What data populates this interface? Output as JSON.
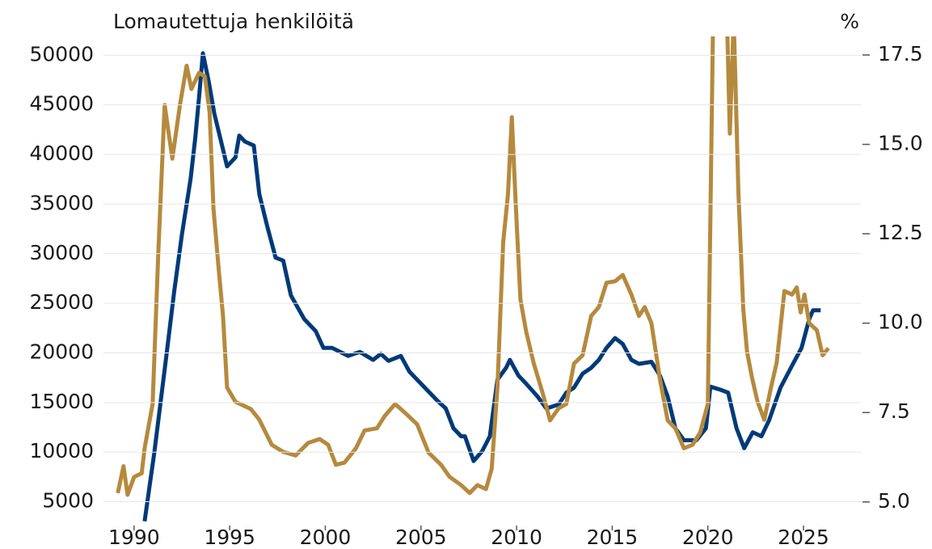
{
  "chart_data": {
    "type": "line",
    "title": "Lomautettuja henkilöitä",
    "y2_label": "%",
    "xlim": [
      1988.4,
      2028.0
    ],
    "xticks": [
      1990,
      1995,
      2000,
      2005,
      2010,
      2015,
      2020,
      2025
    ],
    "ylim": [
      2600,
      51900
    ],
    "yticks": [
      5000,
      10000,
      15000,
      20000,
      25000,
      30000,
      35000,
      40000,
      45000,
      50000
    ],
    "y2lim": [
      4.34,
      18.02
    ],
    "y2ticks": [
      {
        "value": 5.0,
        "label": "5.0"
      },
      7.5,
      {
        "value": 10.0,
        "label": "10.0"
      },
      12.5,
      {
        "value": 15.0,
        "label": "15.0"
      },
      17.5
    ],
    "grid": true,
    "series": [
      {
        "color": "#003a78",
        "axis": "y",
        "x": [
          1990.55,
          1991.06,
          1991.69,
          1992.1,
          1992.5,
          1992.96,
          1993.2,
          1993.4,
          1993.6,
          1993.9,
          1994.2,
          1994.65,
          1994.86,
          1995.3,
          1995.5,
          1995.8,
          1996.26,
          1996.55,
          1996.97,
          1997.4,
          1997.8,
          1998.2,
          1998.9,
          1999.5,
          1999.9,
          2000.35,
          2001.2,
          2001.8,
          2002.5,
          2002.9,
          2003.3,
          2003.95,
          2004.4,
          2004.8,
          2005.2,
          2005.85,
          2006.3,
          2006.7,
          2007.1,
          2007.3,
          2007.75,
          2008.2,
          2008.6,
          2009.0,
          2009.45,
          2009.65,
          2010.1,
          2010.5,
          2011.1,
          2011.55,
          2012.2,
          2012.6,
          2013.0,
          2013.45,
          2013.9,
          2014.3,
          2014.7,
          2015.15,
          2015.55,
          2016.0,
          2016.4,
          2017.05,
          2017.5,
          2017.9,
          2018.3,
          2018.75,
          2019.4,
          2019.9,
          2020.13,
          2020.64,
          2021.06,
          2021.5,
          2021.9,
          2022.35,
          2022.8,
          2023.2,
          2023.8,
          2024.45,
          2024.9,
          2025.3,
          2025.5,
          2025.9
        ],
        "values": [
          3030,
          9950,
          19700,
          26200,
          31900,
          37600,
          41700,
          45800,
          50200,
          47400,
          44100,
          40500,
          38800,
          39700,
          41900,
          41300,
          40900,
          36000,
          32700,
          29600,
          29300,
          25800,
          23400,
          22200,
          20500,
          20500,
          19700,
          20100,
          19300,
          19900,
          19200,
          19700,
          18100,
          17300,
          16500,
          15200,
          14400,
          12400,
          11600,
          11600,
          9100,
          10100,
          11600,
          17300,
          18500,
          19300,
          17700,
          16900,
          15600,
          14400,
          14800,
          16000,
          16500,
          17900,
          18500,
          19300,
          20500,
          21500,
          20900,
          19300,
          18900,
          19100,
          17700,
          15600,
          12400,
          11200,
          11200,
          12400,
          16600,
          16300,
          16000,
          12400,
          10400,
          12000,
          11600,
          13200,
          16500,
          18900,
          20500,
          23400,
          24300,
          24300
        ]
      },
      {
        "color": "#b58a3e",
        "axis": "y2",
        "x": [
          1989.15,
          1989.45,
          1989.66,
          1990.0,
          1990.4,
          1990.55,
          1990.97,
          1991.27,
          1991.6,
          1992.0,
          1992.4,
          1992.75,
          1993.0,
          1993.4,
          1993.7,
          1993.95,
          1994.15,
          1994.45,
          1994.65,
          1994.86,
          1995.3,
          1996.1,
          1996.55,
          1997.2,
          1997.8,
          1998.45,
          1999.1,
          1999.7,
          2000.15,
          2000.55,
          2001.0,
          2001.6,
          2002.05,
          2002.7,
          2003.1,
          2003.65,
          2004.15,
          2004.8,
          2005.4,
          2006.05,
          2006.5,
          2007.1,
          2007.55,
          2007.95,
          2008.4,
          2008.7,
          2009.0,
          2009.3,
          2009.55,
          2009.75,
          2009.95,
          2010.2,
          2010.5,
          2010.9,
          2011.35,
          2011.75,
          2012.2,
          2012.6,
          2013.0,
          2013.45,
          2013.9,
          2014.3,
          2014.7,
          2015.15,
          2015.55,
          2016.0,
          2016.4,
          2016.7,
          2017.05,
          2017.5,
          2017.9,
          2018.3,
          2018.75,
          2019.2,
          2019.6,
          2020.0,
          2020.3,
          2021.0,
          2021.15,
          2021.35,
          2021.6,
          2021.85,
          2022.05,
          2022.3,
          2022.6,
          2022.95,
          2023.3,
          2023.6,
          2024.0,
          2024.4,
          2024.65,
          2024.85,
          2025.05,
          2025.3,
          2025.7,
          2026.0,
          2026.3
        ],
        "values": [
          5.25,
          6.0,
          5.2,
          5.7,
          5.8,
          6.5,
          7.74,
          12.0,
          16.1,
          14.6,
          16.1,
          17.2,
          16.55,
          17.0,
          16.9,
          15.9,
          13.2,
          11.35,
          10.2,
          8.2,
          7.8,
          7.6,
          7.3,
          6.6,
          6.4,
          6.3,
          6.65,
          6.76,
          6.6,
          6.04,
          6.1,
          6.5,
          7.0,
          7.06,
          7.4,
          7.74,
          7.5,
          7.17,
          6.38,
          6.04,
          5.7,
          5.47,
          5.25,
          5.47,
          5.36,
          5.93,
          8.2,
          12.26,
          13.6,
          15.76,
          13.4,
          10.67,
          9.77,
          8.87,
          8.07,
          7.28,
          7.62,
          7.74,
          8.87,
          9.1,
          10.2,
          10.45,
          11.13,
          11.17,
          11.35,
          10.8,
          10.2,
          10.45,
          10.0,
          8.41,
          7.28,
          7.06,
          6.5,
          6.6,
          6.94,
          7.74,
          19.5,
          18.5,
          15.3,
          18.5,
          13.6,
          10.4,
          9.2,
          8.5,
          7.8,
          7.3,
          8.2,
          8.9,
          10.9,
          10.8,
          11.0,
          10.3,
          10.8,
          10.0,
          9.8,
          9.1,
          9.3
        ]
      }
    ]
  }
}
